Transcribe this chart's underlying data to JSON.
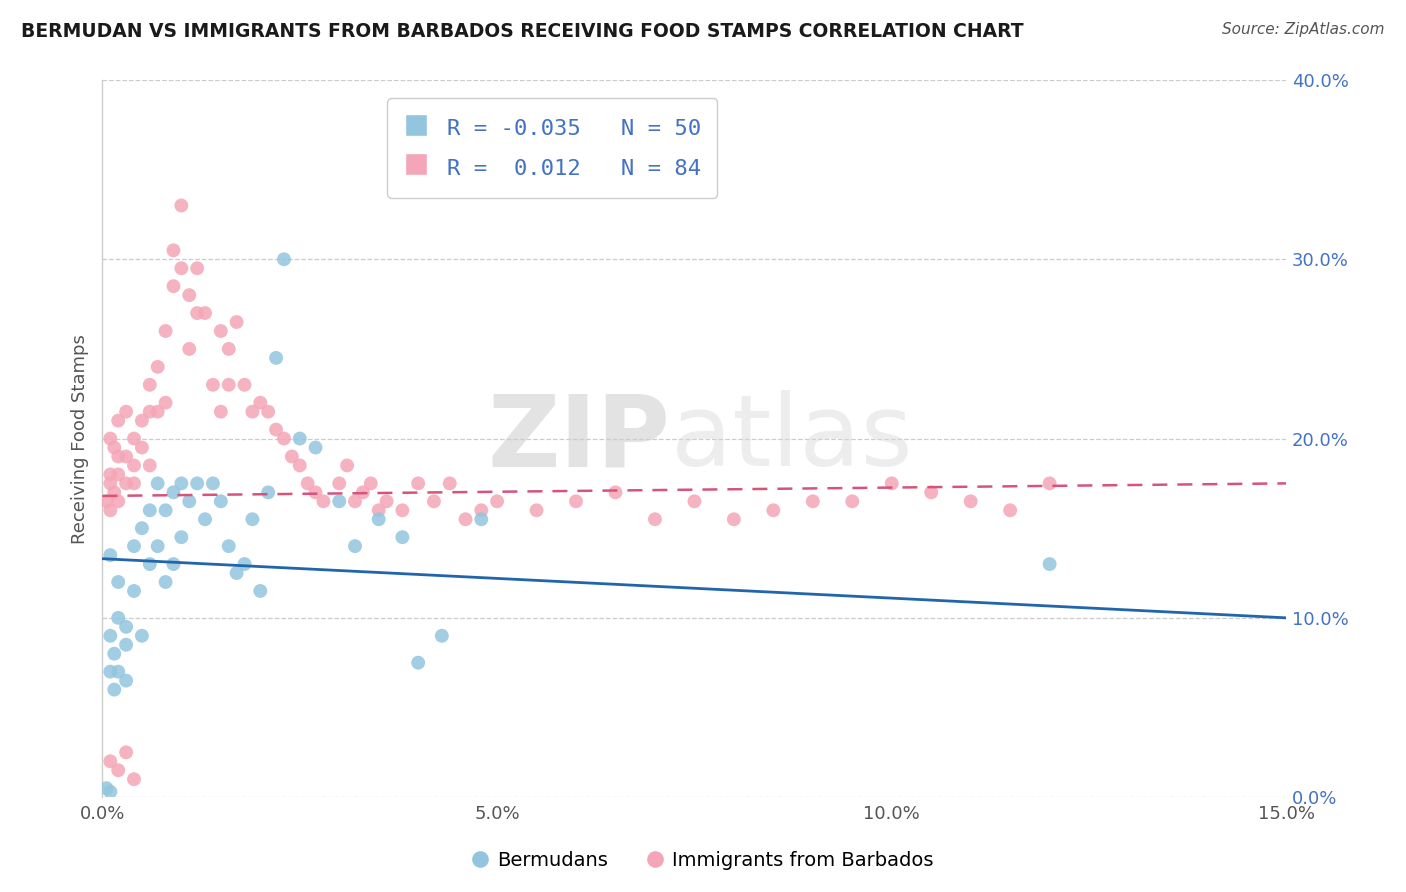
{
  "title": "BERMUDAN VS IMMIGRANTS FROM BARBADOS RECEIVING FOOD STAMPS CORRELATION CHART",
  "source_text": "Source: ZipAtlas.com",
  "ylabel": "Receiving Food Stamps",
  "legend_label_1": "Bermudans",
  "legend_label_2": "Immigrants from Barbados",
  "R1": -0.035,
  "N1": 50,
  "R2": 0.012,
  "N2": 84,
  "color_blue": "#92c5de",
  "color_pink": "#f4a6b8",
  "color_blue_line": "#2166ac",
  "color_pink_line": "#d6537a",
  "watermark_zip": "ZIP",
  "watermark_atlas": "atlas",
  "xlim": [
    0.0,
    0.15
  ],
  "ylim": [
    0.0,
    0.4
  ],
  "xticks": [
    0.0,
    0.05,
    0.1,
    0.15
  ],
  "yticks": [
    0.0,
    0.1,
    0.2,
    0.3,
    0.4
  ],
  "blue_line_y0": 0.133,
  "blue_line_y1": 0.1,
  "pink_line_y0": 0.168,
  "pink_line_y1": 0.175,
  "blue_x": [
    0.0005,
    0.001,
    0.001,
    0.001,
    0.0015,
    0.0015,
    0.002,
    0.002,
    0.002,
    0.003,
    0.003,
    0.003,
    0.004,
    0.004,
    0.005,
    0.005,
    0.006,
    0.006,
    0.007,
    0.007,
    0.008,
    0.008,
    0.009,
    0.009,
    0.01,
    0.01,
    0.011,
    0.012,
    0.013,
    0.014,
    0.015,
    0.016,
    0.017,
    0.018,
    0.019,
    0.02,
    0.021,
    0.022,
    0.023,
    0.025,
    0.027,
    0.03,
    0.032,
    0.035,
    0.038,
    0.04,
    0.043,
    0.048,
    0.12,
    0.001
  ],
  "blue_y": [
    0.005,
    0.135,
    0.09,
    0.07,
    0.06,
    0.08,
    0.1,
    0.12,
    0.07,
    0.085,
    0.095,
    0.065,
    0.14,
    0.115,
    0.15,
    0.09,
    0.16,
    0.13,
    0.175,
    0.14,
    0.16,
    0.12,
    0.17,
    0.13,
    0.175,
    0.145,
    0.165,
    0.175,
    0.155,
    0.175,
    0.165,
    0.14,
    0.125,
    0.13,
    0.155,
    0.115,
    0.17,
    0.245,
    0.3,
    0.2,
    0.195,
    0.165,
    0.14,
    0.155,
    0.145,
    0.075,
    0.09,
    0.155,
    0.13,
    0.003
  ],
  "pink_x": [
    0.0005,
    0.001,
    0.001,
    0.001,
    0.001,
    0.0015,
    0.0015,
    0.002,
    0.002,
    0.002,
    0.002,
    0.003,
    0.003,
    0.003,
    0.004,
    0.004,
    0.004,
    0.005,
    0.005,
    0.006,
    0.006,
    0.006,
    0.007,
    0.007,
    0.008,
    0.008,
    0.009,
    0.009,
    0.01,
    0.01,
    0.011,
    0.011,
    0.012,
    0.012,
    0.013,
    0.014,
    0.015,
    0.015,
    0.016,
    0.016,
    0.017,
    0.018,
    0.019,
    0.02,
    0.021,
    0.022,
    0.023,
    0.024,
    0.025,
    0.026,
    0.027,
    0.028,
    0.03,
    0.031,
    0.032,
    0.033,
    0.034,
    0.035,
    0.036,
    0.038,
    0.04,
    0.042,
    0.044,
    0.046,
    0.048,
    0.05,
    0.055,
    0.06,
    0.065,
    0.07,
    0.075,
    0.08,
    0.085,
    0.09,
    0.095,
    0.1,
    0.105,
    0.11,
    0.115,
    0.12,
    0.001,
    0.002,
    0.003,
    0.004
  ],
  "pink_y": [
    0.165,
    0.18,
    0.16,
    0.2,
    0.175,
    0.17,
    0.195,
    0.165,
    0.18,
    0.19,
    0.21,
    0.175,
    0.19,
    0.215,
    0.185,
    0.2,
    0.175,
    0.21,
    0.195,
    0.23,
    0.215,
    0.185,
    0.215,
    0.24,
    0.22,
    0.26,
    0.285,
    0.305,
    0.295,
    0.33,
    0.28,
    0.25,
    0.27,
    0.295,
    0.27,
    0.23,
    0.215,
    0.26,
    0.23,
    0.25,
    0.265,
    0.23,
    0.215,
    0.22,
    0.215,
    0.205,
    0.2,
    0.19,
    0.185,
    0.175,
    0.17,
    0.165,
    0.175,
    0.185,
    0.165,
    0.17,
    0.175,
    0.16,
    0.165,
    0.16,
    0.175,
    0.165,
    0.175,
    0.155,
    0.16,
    0.165,
    0.16,
    0.165,
    0.17,
    0.155,
    0.165,
    0.155,
    0.16,
    0.165,
    0.165,
    0.175,
    0.17,
    0.165,
    0.16,
    0.175,
    0.02,
    0.015,
    0.025,
    0.01
  ]
}
